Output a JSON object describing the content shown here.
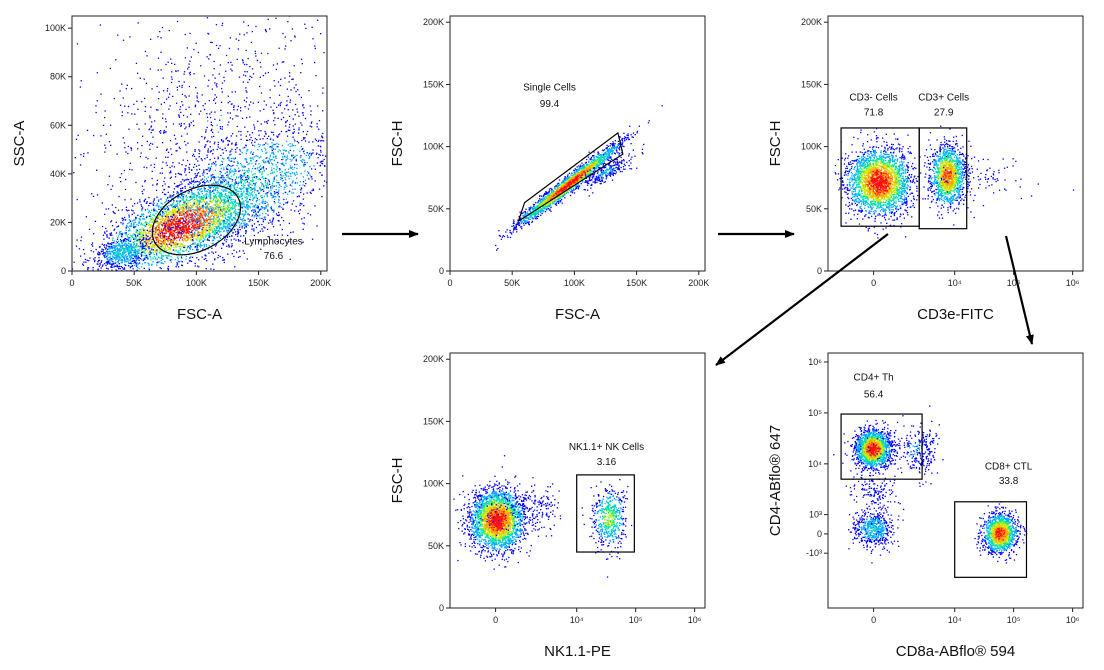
{
  "colors": {
    "density": [
      "#0000ff",
      "#00aaff",
      "#00e0b0",
      "#c8f000",
      "#ffa000",
      "#ff1010"
    ],
    "frame": "#222222",
    "arrow": "#000000"
  },
  "arrows": [
    "lymphocytes-to-single-cells",
    "single-cells-to-cd3",
    "cd3-negative-to-nk",
    "cd3-positive-to-cd4-cd8"
  ],
  "chart_data": [
    {
      "id": "p1",
      "type": "scatter",
      "title": "",
      "xlabel": "FSC-A",
      "ylabel": "SSC-A",
      "xscale": "linear",
      "yscale": "linear",
      "xlim": [
        0,
        205000
      ],
      "ylim": [
        0,
        105000
      ],
      "xticks": [
        {
          "v": 0,
          "t": "0"
        },
        {
          "v": 50000,
          "t": "50K"
        },
        {
          "v": 100000,
          "t": "100K"
        },
        {
          "v": 150000,
          "t": "150K"
        },
        {
          "v": 200000,
          "t": "200K"
        }
      ],
      "yticks": [
        {
          "v": 0,
          "t": "0"
        },
        {
          "v": 20000,
          "t": "20K"
        },
        {
          "v": 40000,
          "t": "40K"
        },
        {
          "v": 60000,
          "t": "60K"
        },
        {
          "v": 80000,
          "t": "80K"
        },
        {
          "v": 100000,
          "t": "100K"
        }
      ],
      "gates": [
        {
          "name": "Lymphocytes",
          "percent": "76.6",
          "shape": "ellipse",
          "cx": 100000,
          "cy": 21000,
          "rx": 38000,
          "ry": 12500,
          "angle": 28,
          "label_pos": [
            162000,
            11000
          ],
          "pct_pos": [
            162000,
            5000
          ]
        }
      ],
      "populations": [
        {
          "cx": 88000,
          "cy": 19000,
          "sx": 30000,
          "sy": 9000,
          "n": 3000,
          "dens": 1.0,
          "corr": 0.6
        },
        {
          "cx": 140000,
          "cy": 35000,
          "sx": 38000,
          "sy": 14000,
          "n": 1600,
          "dens": 0.4,
          "corr": 0.55
        },
        {
          "cx": 110000,
          "cy": 60000,
          "sx": 55000,
          "sy": 25000,
          "n": 900,
          "dens": 0.15,
          "corr": 0.2
        },
        {
          "cx": 40000,
          "cy": 8000,
          "sx": 12000,
          "sy": 3500,
          "n": 500,
          "dens": 0.35,
          "corr": 0.3
        }
      ]
    },
    {
      "id": "p2",
      "type": "scatter",
      "title": "",
      "xlabel": "FSC-A",
      "ylabel": "FSC-H",
      "xscale": "linear",
      "yscale": "linear",
      "xlim": [
        0,
        205000
      ],
      "ylim": [
        0,
        205000
      ],
      "xticks": [
        {
          "v": 0,
          "t": "0"
        },
        {
          "v": 50000,
          "t": "50K"
        },
        {
          "v": 100000,
          "t": "100K"
        },
        {
          "v": 150000,
          "t": "150K"
        },
        {
          "v": 200000,
          "t": "200K"
        }
      ],
      "yticks": [
        {
          "v": 0,
          "t": "0"
        },
        {
          "v": 50000,
          "t": "50K"
        },
        {
          "v": 100000,
          "t": "100K"
        },
        {
          "v": 150000,
          "t": "150K"
        },
        {
          "v": 200000,
          "t": "200K"
        }
      ],
      "gates": [
        {
          "name": "Single Cells",
          "percent": "99.4",
          "shape": "polygon",
          "points": [
            [
              55000,
              40000
            ],
            [
              60000,
              55000
            ],
            [
              135000,
              111000
            ],
            [
              139000,
              94000
            ]
          ],
          "label_pos": [
            80000,
            145000
          ],
          "pct_pos": [
            80000,
            132000
          ]
        }
      ],
      "populations": [
        {
          "cx": 95000,
          "cy": 70000,
          "sx": 20000,
          "sy": 3500,
          "n": 2200,
          "dens": 1.0,
          "corr": 0,
          "diag": 0.78
        },
        {
          "cx": 125000,
          "cy": 80000,
          "sx": 10000,
          "sy": 4000,
          "n": 260,
          "dens": 0.2,
          "corr": 0,
          "diag": 0.5
        }
      ]
    },
    {
      "id": "p3",
      "type": "scatter",
      "title": "",
      "xlabel": "CD3e-FITC",
      "ylabel": "FSC-H",
      "xscale": "biex",
      "yscale": "linear",
      "xlim": [
        -2500,
        1500000
      ],
      "ylim": [
        0,
        205000
      ],
      "xticks": [
        {
          "v": 0,
          "t": "0"
        },
        {
          "v": 10000,
          "t": "10⁴"
        },
        {
          "v": 100000,
          "t": "10⁵"
        },
        {
          "v": 1000000,
          "t": "10⁶"
        }
      ],
      "yticks": [
        {
          "v": 0,
          "t": "0"
        },
        {
          "v": 50000,
          "t": "50K"
        },
        {
          "v": 100000,
          "t": "100K"
        },
        {
          "v": 150000,
          "t": "150K"
        },
        {
          "v": 200000,
          "t": "200K"
        }
      ],
      "gates": [
        {
          "name": "CD3- Cells",
          "percent": "71.8",
          "shape": "rect",
          "x1": -1500,
          "x2": 2500,
          "y1": 36000,
          "y2": 115000,
          "label_pos": [
            0,
            137000
          ],
          "pct_pos": [
            0,
            125000
          ]
        },
        {
          "name": "CD3+ Cells",
          "percent": "27.9",
          "shape": "rect",
          "x1": 2500,
          "x2": 16000,
          "y1": 34000,
          "y2": 115000,
          "label_pos": [
            6500,
            137000
          ],
          "pct_pos": [
            6500,
            125000
          ]
        }
      ],
      "populations": [
        {
          "cx": 220,
          "cy": 72000,
          "sx": 700,
          "sy": 13000,
          "n": 2600,
          "dens": 1.0,
          "corr": 0
        },
        {
          "cx": 7500,
          "cy": 77000,
          "sx": 0.15,
          "sy": 12000,
          "n": 1300,
          "dens": 0.85,
          "corr": 0,
          "logx": true
        },
        {
          "cx": 30000,
          "cy": 74000,
          "sx": 0.4,
          "sy": 9000,
          "n": 90,
          "dens": 0.1,
          "corr": 0,
          "logx": true
        }
      ]
    },
    {
      "id": "p4",
      "type": "scatter",
      "title": "",
      "xlabel": "NK1.1-PE",
      "ylabel": "FSC-H",
      "xscale": "biex",
      "yscale": "linear",
      "xlim": [
        -2500,
        1500000
      ],
      "ylim": [
        0,
        205000
      ],
      "xticks": [
        {
          "v": 0,
          "t": "0"
        },
        {
          "v": 10000,
          "t": "10⁴"
        },
        {
          "v": 100000,
          "t": "10⁵"
        },
        {
          "v": 1000000,
          "t": "10⁶"
        }
      ],
      "yticks": [
        {
          "v": 0,
          "t": "0"
        },
        {
          "v": 50000,
          "t": "50K"
        },
        {
          "v": 100000,
          "t": "100K"
        },
        {
          "v": 150000,
          "t": "150K"
        },
        {
          "v": 200000,
          "t": "200K"
        }
      ],
      "gates": [
        {
          "name": "NK1.1+ NK Cells",
          "percent": "3.16",
          "shape": "rect",
          "x1": 10000,
          "x2": 95000,
          "y1": 45000,
          "y2": 107000,
          "label_pos": [
            32000,
            127000
          ],
          "pct_pos": [
            32000,
            115000
          ]
        }
      ],
      "populations": [
        {
          "cx": 50,
          "cy": 71000,
          "sx": 600,
          "sy": 12000,
          "n": 2600,
          "dens": 1.0,
          "corr": 0
        },
        {
          "cx": 35000,
          "cy": 73000,
          "sx": 0.14,
          "sy": 12000,
          "n": 500,
          "dens": 0.55,
          "corr": 0,
          "logx": true
        },
        {
          "cx": 1200,
          "cy": 79000,
          "sx": 1500,
          "sy": 9000,
          "n": 250,
          "dens": 0.12,
          "corr": 0
        }
      ]
    },
    {
      "id": "p5",
      "type": "scatter",
      "title": "",
      "xlabel": "CD8a-ABflo® 594",
      "ylabel": "CD4-ABflo® 647",
      "xscale": "biex",
      "yscale": "biex",
      "xlim": [
        -2500,
        1500000
      ],
      "ylim": [
        -12000,
        1500000
      ],
      "xticks": [
        {
          "v": 0,
          "t": "0"
        },
        {
          "v": 10000,
          "t": "10⁴"
        },
        {
          "v": 100000,
          "t": "10⁵"
        },
        {
          "v": 1000000,
          "t": "10⁶"
        }
      ],
      "yticks": [
        {
          "v": -1000,
          "t": "-10³"
        },
        {
          "v": 0,
          "t": "0"
        },
        {
          "v": 1000,
          "t": "10³"
        },
        {
          "v": 10000,
          "t": "10⁴"
        },
        {
          "v": 100000,
          "t": "10⁵"
        },
        {
          "v": 1000000,
          "t": "10⁶"
        }
      ],
      "gates": [
        {
          "name": "CD4+ Th",
          "percent": "56.4",
          "shape": "rect",
          "x1": -1500,
          "x2": 2800,
          "y1": 5000,
          "y2": 95000,
          "label_pos": [
            0,
            430000
          ],
          "pct_pos": [
            0,
            200000
          ]
        },
        {
          "name": "CD8+ CTL",
          "percent": "33.8",
          "shape": "rect",
          "x1": 10000,
          "x2": 165000,
          "y1": -3000,
          "y2": 1800,
          "label_pos": [
            82000,
            7800
          ],
          "pct_pos": [
            82000,
            4000
          ]
        }
      ],
      "populations": [
        {
          "cx": -50,
          "cy": 20000,
          "sx": 380,
          "sy": 0.18,
          "n": 1800,
          "dens": 1.0,
          "corr": 0,
          "logy": true
        },
        {
          "cx": 58000,
          "cy": 50,
          "sx": 0.14,
          "sy": 500,
          "n": 1400,
          "dens": 0.95,
          "corr": 0,
          "logx": true
        },
        {
          "cx": -50,
          "cy": 300,
          "sx": 450,
          "sy": 450,
          "n": 500,
          "dens": 0.35,
          "corr": 0
        },
        {
          "cx": 2200,
          "cy": 19000,
          "sx": 1200,
          "sy": 0.25,
          "n": 300,
          "dens": 0.18,
          "corr": 0,
          "logy": true
        },
        {
          "cx": 0,
          "cy": 2500,
          "sx": 500,
          "sy": 1500,
          "n": 160,
          "dens": 0.12,
          "corr": 0
        }
      ]
    }
  ]
}
